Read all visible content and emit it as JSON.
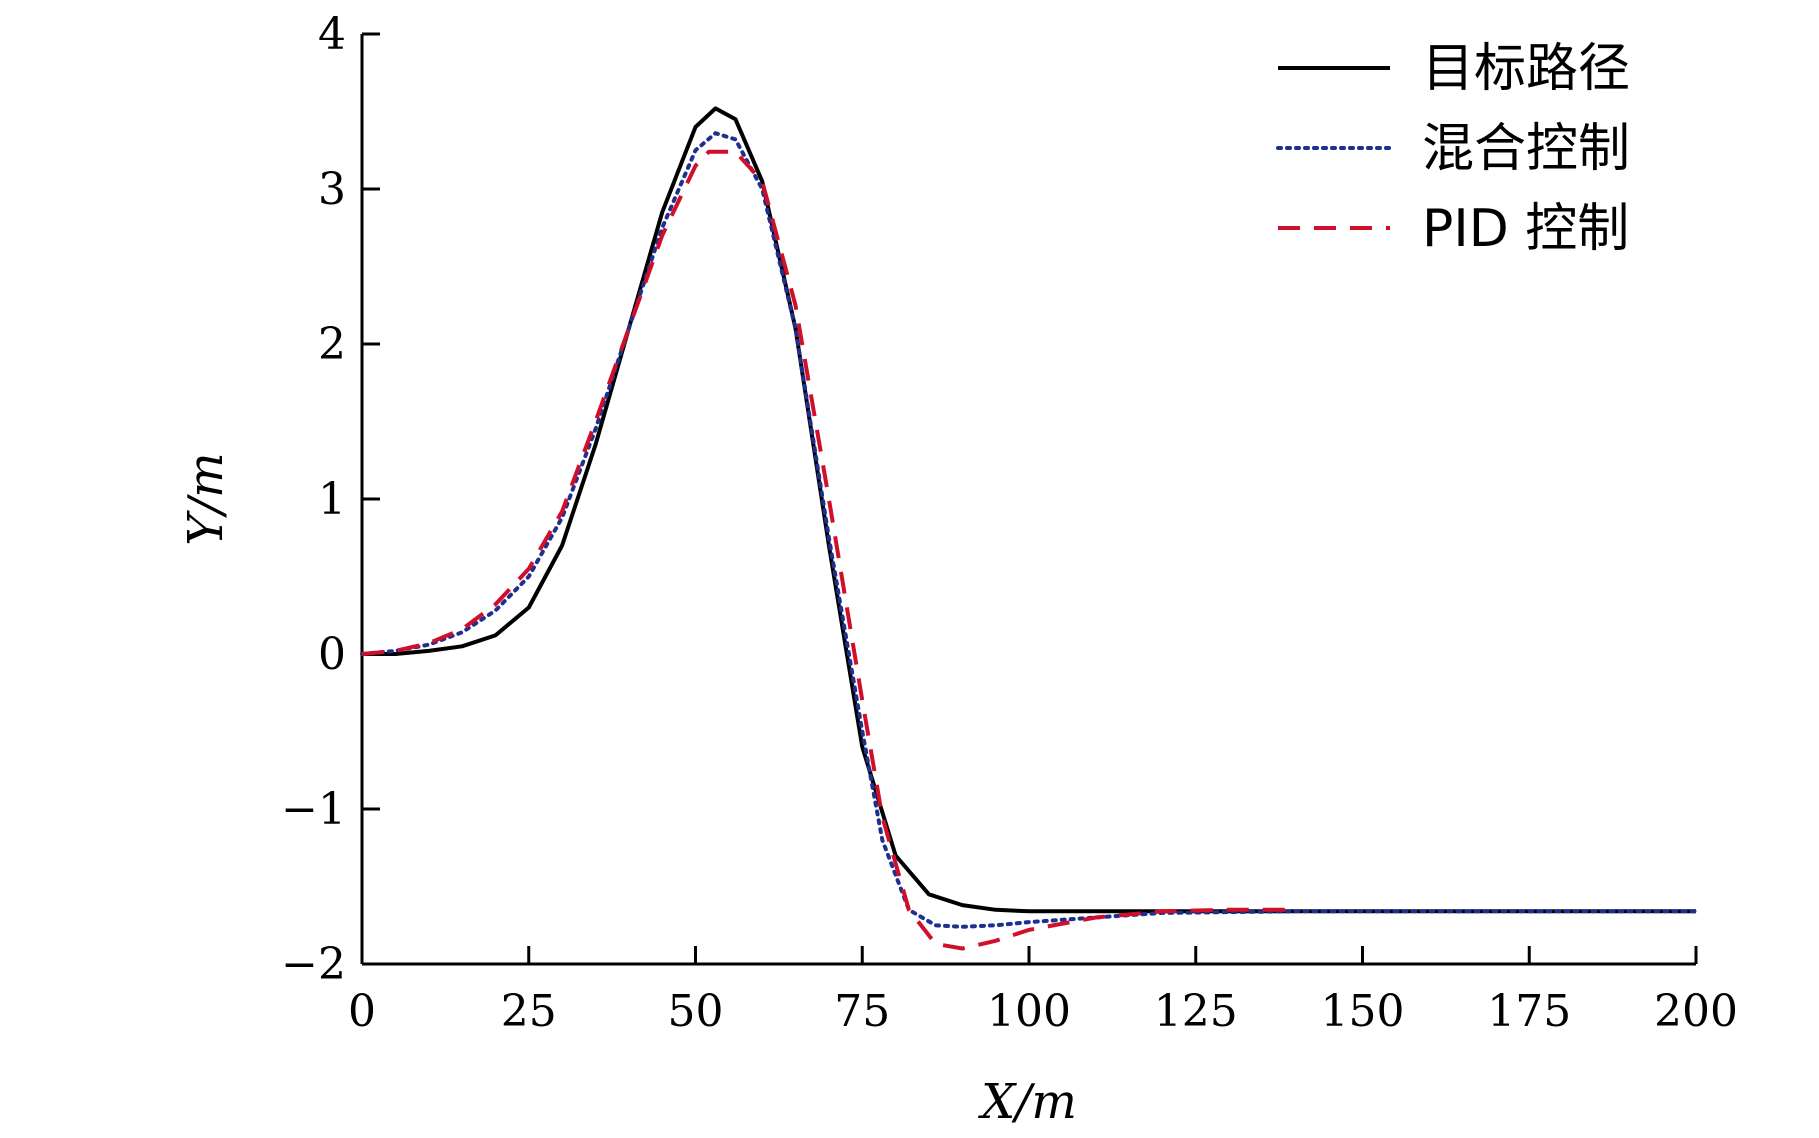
{
  "chart_data": {
    "type": "line",
    "xlabel": "X/m",
    "ylabel": "Y/m",
    "xlim": [
      0,
      200
    ],
    "ylim": [
      -2,
      4
    ],
    "xticks": [
      "0",
      "25",
      "50",
      "75",
      "100",
      "125",
      "150",
      "175",
      "200"
    ],
    "yticks": [
      "−2",
      "−1",
      "0",
      "1",
      "2",
      "3",
      "4"
    ],
    "grid": false,
    "legend_position": "top-right",
    "series": [
      {
        "name": "目标路径",
        "style": "solid",
        "color": "#000000",
        "x": [
          0,
          5,
          10,
          15,
          20,
          25,
          30,
          35,
          40,
          45,
          50,
          53,
          56,
          60,
          65,
          70,
          75,
          80,
          85,
          90,
          95,
          100,
          110,
          120,
          140,
          160,
          180,
          200
        ],
        "y": [
          0.0,
          0.0,
          0.02,
          0.05,
          0.12,
          0.3,
          0.7,
          1.35,
          2.1,
          2.85,
          3.4,
          3.52,
          3.45,
          3.05,
          2.1,
          0.7,
          -0.6,
          -1.3,
          -1.55,
          -1.62,
          -1.65,
          -1.66,
          -1.66,
          -1.66,
          -1.66,
          -1.66,
          -1.66,
          -1.66
        ]
      },
      {
        "name": "混合控制",
        "style": "dotted",
        "color": "#1f2f8f",
        "x": [
          0,
          5,
          10,
          15,
          20,
          25,
          30,
          35,
          40,
          45,
          50,
          53,
          56,
          60,
          65,
          70,
          75,
          78,
          82,
          86,
          90,
          95,
          100,
          110,
          120,
          140,
          160,
          200
        ],
        "y": [
          0.0,
          0.02,
          0.06,
          0.14,
          0.28,
          0.5,
          0.88,
          1.45,
          2.1,
          2.75,
          3.25,
          3.36,
          3.32,
          3.0,
          2.1,
          0.75,
          -0.5,
          -1.2,
          -1.65,
          -1.75,
          -1.76,
          -1.75,
          -1.73,
          -1.7,
          -1.67,
          -1.66,
          -1.66,
          -1.66
        ]
      },
      {
        "name": "PID 控制",
        "style": "dashed",
        "color": "#d0102a",
        "x": [
          0,
          5,
          10,
          15,
          20,
          25,
          30,
          35,
          40,
          45,
          50,
          52,
          56,
          60,
          65,
          70,
          75,
          78,
          82,
          86,
          90,
          95,
          100,
          110,
          120,
          130,
          140
        ],
        "y": [
          0.0,
          0.02,
          0.07,
          0.16,
          0.32,
          0.55,
          0.92,
          1.5,
          2.1,
          2.7,
          3.15,
          3.24,
          3.24,
          3.05,
          2.25,
          1.0,
          -0.3,
          -1.05,
          -1.65,
          -1.87,
          -1.9,
          -1.85,
          -1.78,
          -1.7,
          -1.66,
          -1.65,
          -1.65
        ]
      }
    ]
  }
}
